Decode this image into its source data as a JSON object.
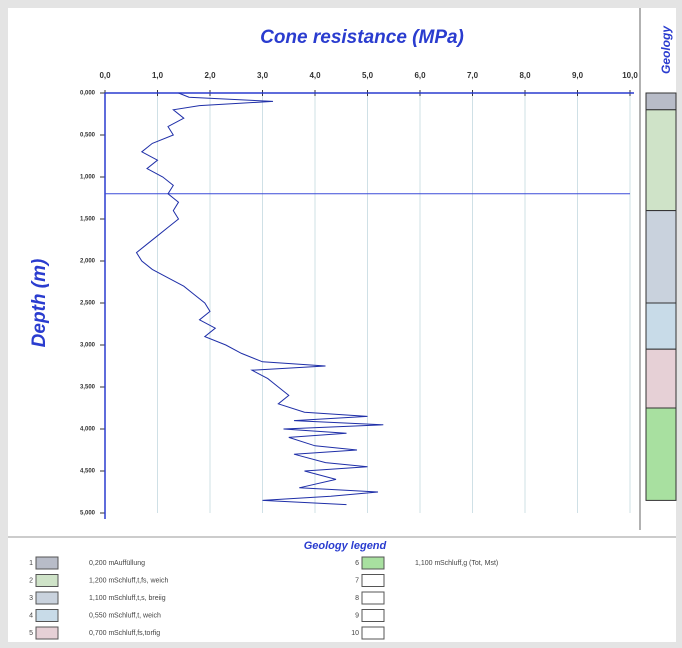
{
  "chart_data": {
    "type": "line",
    "title": "Cone resistance (MPa)",
    "y_label": "Depth (m)",
    "color": "#1f2fa8",
    "x": [
      1.4,
      1.6,
      3.2,
      1.8,
      1.3,
      1.5,
      1.2,
      1.3,
      0.9,
      0.7,
      1.0,
      0.8,
      1.1,
      1.3,
      1.2,
      1.4,
      1.3,
      1.4,
      1.2,
      1.0,
      0.8,
      0.6,
      0.7,
      0.9,
      1.2,
      1.5,
      1.7,
      1.9,
      2.0,
      1.8,
      2.1,
      1.9,
      2.3,
      2.6,
      3.0,
      4.2,
      2.8,
      3.1,
      3.3,
      3.5,
      3.3,
      3.8,
      5.0,
      3.6,
      5.3,
      3.4,
      4.6,
      3.5,
      4.0,
      4.8,
      3.6,
      4.2,
      5.0,
      3.8,
      4.4,
      3.7,
      5.2,
      4.3,
      3.0,
      4.6
    ],
    "values": [
      0.0,
      0.05,
      0.1,
      0.15,
      0.2,
      0.3,
      0.4,
      0.5,
      0.6,
      0.7,
      0.8,
      0.9,
      1.0,
      1.1,
      1.2,
      1.3,
      1.4,
      1.5,
      1.6,
      1.7,
      1.8,
      1.9,
      2.0,
      2.1,
      2.2,
      2.3,
      2.4,
      2.5,
      2.6,
      2.7,
      2.8,
      2.9,
      3.0,
      3.1,
      3.2,
      3.25,
      3.3,
      3.4,
      3.5,
      3.6,
      3.7,
      3.8,
      3.85,
      3.9,
      3.95,
      4.0,
      4.05,
      4.1,
      4.2,
      4.25,
      4.3,
      4.4,
      4.45,
      4.5,
      4.6,
      4.7,
      4.75,
      4.8,
      4.85,
      4.9
    ],
    "xlim": [
      0,
      10
    ],
    "ylim": [
      0,
      5
    ],
    "xticks": [
      {
        "value": 0,
        "label": "0,0"
      },
      {
        "value": 1,
        "label": "1,0"
      },
      {
        "value": 2,
        "label": "2,0"
      },
      {
        "value": 3,
        "label": "3,0"
      },
      {
        "value": 4,
        "label": "4,0"
      },
      {
        "value": 5,
        "label": "5,0"
      },
      {
        "value": 6,
        "label": "6,0"
      },
      {
        "value": 7,
        "label": "7,0"
      },
      {
        "value": 8,
        "label": "8,0"
      },
      {
        "value": 9,
        "label": "9,0"
      },
      {
        "value": 10,
        "label": "10,0"
      }
    ],
    "yticks": [
      {
        "value": 0,
        "label": "0,000"
      },
      {
        "value": 0.5,
        "label": "0,500"
      },
      {
        "value": 1,
        "label": "1,000"
      },
      {
        "value": 1.5,
        "label": "1,500"
      },
      {
        "value": 2,
        "label": "2,000"
      },
      {
        "value": 2.5,
        "label": "2,500"
      },
      {
        "value": 3,
        "label": "3,000"
      },
      {
        "value": 3.5,
        "label": "3,500"
      },
      {
        "value": 4,
        "label": "4,000"
      },
      {
        "value": 4.5,
        "label": "4,500"
      },
      {
        "value": 5,
        "label": "5,000"
      }
    ],
    "reference_depth": 1.2,
    "grid": true
  },
  "geology": {
    "title": "Geology",
    "legend_title": "Geology legend",
    "layers": [
      {
        "no": "1",
        "thickness": 0.2,
        "label": "0,200 m",
        "soil": "Auffüllung",
        "color": "#b8bcc8"
      },
      {
        "no": "2",
        "thickness": 1.2,
        "label": "1,200 m",
        "soil": "Schluff,t,fs, weich",
        "color": "#cfe3c8"
      },
      {
        "no": "3",
        "thickness": 1.1,
        "label": "1,100 m",
        "soil": "Schluff,t,s, breiig",
        "color": "#c9d2dd"
      },
      {
        "no": "4",
        "thickness": 0.55,
        "label": "0,550 m",
        "soil": "Schluff,t, weich",
        "color": "#c8dbe8"
      },
      {
        "no": "5",
        "thickness": 0.7,
        "label": "0,700 m",
        "soil": "Schluff,fs,torfig",
        "color": "#e6d0d6"
      },
      {
        "no": "6",
        "thickness": 1.1,
        "label": "1,100 m",
        "soil": "Schluff,g (Tot, Mst)",
        "color": "#a8e0a0"
      }
    ],
    "empty_slots": [
      "7",
      "8",
      "9",
      "10"
    ]
  }
}
